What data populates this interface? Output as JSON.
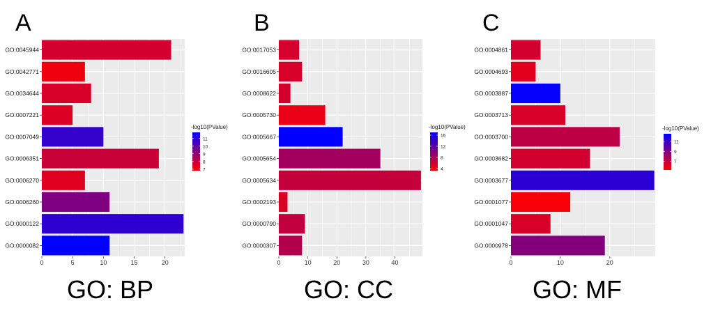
{
  "colors": {
    "low": "#ff0000",
    "high": "#0000ff",
    "panel_bg": "#ebebeb",
    "grid": "#ffffff"
  },
  "chart_data": [
    {
      "type": "bar",
      "orientation": "horizontal",
      "panel_letter": "A",
      "caption": "GO: BP",
      "categories": [
        "GO:0045944",
        "GO:0042771",
        "GO:0034644",
        "GO:0007221",
        "GO:0007049",
        "GO:0006351",
        "GO:0006270",
        "GO:0006260",
        "GO:0000122",
        "GO:0000082"
      ],
      "values": [
        21,
        7,
        8,
        5,
        10,
        19,
        7,
        11,
        23,
        11
      ],
      "color_values": [
        7.7,
        7.1,
        7.6,
        7.5,
        10.8,
        7.9,
        7.4,
        9.3,
        10.9,
        12
      ],
      "xlim": [
        0,
        23.2
      ],
      "xticks": [
        0,
        5,
        10,
        15,
        20
      ],
      "legend": {
        "title": "-log10(PValue)",
        "ticks": [
          11,
          10,
          9,
          8,
          7
        ],
        "min": 6.8,
        "max": 11.8
      }
    },
    {
      "type": "bar",
      "orientation": "horizontal",
      "panel_letter": "B",
      "caption": "GO: CC",
      "categories": [
        "GO:0017053",
        "GO:0016605",
        "GO:0008622",
        "GO:0005730",
        "GO:0005667",
        "GO:0005654",
        "GO:0005634",
        "GO:0002193",
        "GO:0000790",
        "GO:0000307"
      ],
      "values": [
        7,
        8,
        4,
        16,
        22,
        35,
        49,
        3,
        9,
        8
      ],
      "color_values": [
        5.5,
        5.4,
        5.6,
        4.4,
        17,
        8.3,
        6.4,
        5.2,
        6.5,
        7.3
      ],
      "xlim": [
        0,
        49.5
      ],
      "xticks": [
        0,
        10,
        20,
        30,
        40
      ],
      "legend": {
        "title": "-log10(PValue)",
        "ticks": [
          16,
          12,
          8,
          4
        ],
        "min": 3.2,
        "max": 17
      }
    },
    {
      "type": "bar",
      "orientation": "horizontal",
      "panel_letter": "C",
      "caption": "GO: MF",
      "categories": [
        "GO:0004861",
        "GO:0004693",
        "GO:0003887",
        "GO:0003713",
        "GO:0003700",
        "GO:0003682",
        "GO:0003677",
        "GO:0001077",
        "GO:0001047",
        "GO:0000978"
      ],
      "values": [
        6,
        5,
        10,
        11,
        22,
        16,
        29,
        12,
        8,
        19
      ],
      "color_values": [
        6.6,
        6.1,
        12.4,
        6.4,
        7.2,
        6.6,
        11.3,
        5.5,
        6.4,
        8.8
      ],
      "xlim": [
        0,
        29.2
      ],
      "xticks": [
        0,
        10,
        20
      ],
      "legend": {
        "title": "-log10(PValue)",
        "ticks": [
          11,
          9,
          7
        ],
        "min": 5.3,
        "max": 12.5
      }
    }
  ]
}
